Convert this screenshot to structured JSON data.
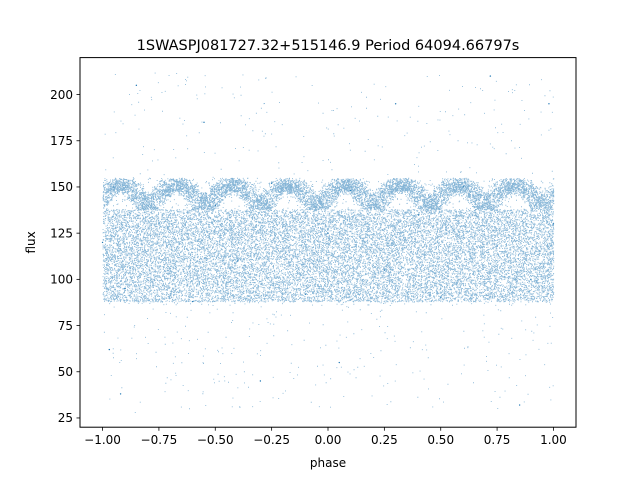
{
  "chart_data": {
    "type": "scatter",
    "title": "1SWASPJ081727.32+515146.9 Period 64094.66797s",
    "xlabel": "phase",
    "ylabel": "flux",
    "xlim": [
      -1.1,
      1.1
    ],
    "ylim": [
      20,
      220
    ],
    "xticks": [
      -1.0,
      -0.75,
      -0.5,
      -0.25,
      0.0,
      0.25,
      0.5,
      0.75,
      1.0
    ],
    "xtick_labels": [
      "−1.00",
      "−0.75",
      "−0.50",
      "−0.25",
      "0.00",
      "0.25",
      "0.50",
      "0.75",
      "1.00"
    ],
    "yticks": [
      25,
      50,
      75,
      100,
      125,
      150,
      175,
      200
    ],
    "ytick_labels": [
      "25",
      "50",
      "75",
      "100",
      "125",
      "150",
      "175",
      "200"
    ],
    "grid": false,
    "marker_color": "#1f77b4",
    "series": [
      {
        "description": "phase-folded light curve, dense point cloud",
        "phase_range": [
          -1.0,
          1.0
        ],
        "flux_band_main": [
          86,
          155
        ],
        "flux_band_dense_core": [
          88,
          138
        ],
        "flux_outlier_range": [
          28,
          212
        ],
        "approx_points": 30000,
        "sample_points": [
          [
            -1.0,
            120
          ],
          [
            -0.95,
            150
          ],
          [
            -0.9,
            95
          ],
          [
            -0.75,
            130
          ],
          [
            -0.6,
            88
          ],
          [
            -0.5,
            140
          ],
          [
            -0.4,
            110
          ],
          [
            -0.25,
            152
          ],
          [
            -0.1,
            92
          ],
          [
            0.0,
            125
          ],
          [
            0.1,
            148
          ],
          [
            0.25,
            105
          ],
          [
            0.4,
            135
          ],
          [
            0.5,
            90
          ],
          [
            0.6,
            150
          ],
          [
            0.75,
            118
          ],
          [
            0.9,
            100
          ],
          [
            1.0,
            130
          ],
          [
            -0.97,
            62
          ],
          [
            -0.92,
            38
          ],
          [
            -0.85,
            205
          ],
          [
            -0.55,
            185
          ],
          [
            -0.3,
            45
          ],
          [
            0.05,
            55
          ],
          [
            0.3,
            195
          ],
          [
            0.72,
            210
          ],
          [
            0.85,
            32
          ],
          [
            0.98,
            195
          ]
        ]
      }
    ]
  }
}
